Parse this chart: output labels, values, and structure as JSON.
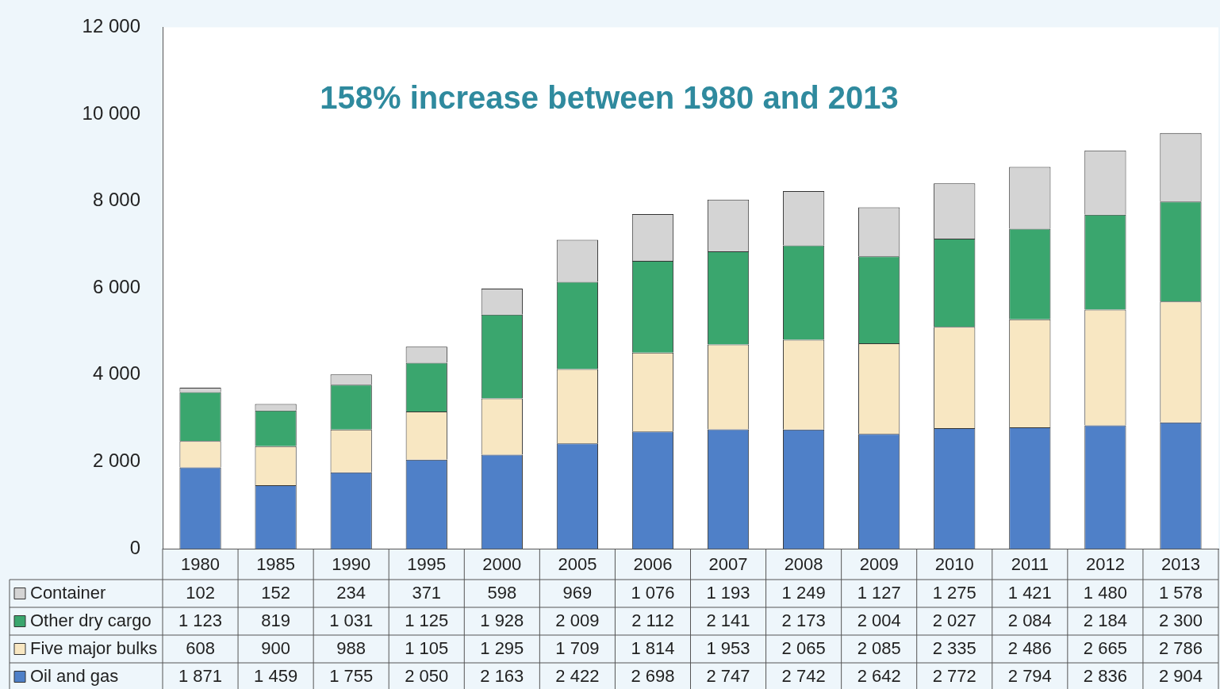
{
  "chart_data": {
    "type": "bar",
    "stacked": true,
    "categories": [
      "1980",
      "1985",
      "1990",
      "1995",
      "2000",
      "2005",
      "2006",
      "2007",
      "2008",
      "2009",
      "2010",
      "2011",
      "2012",
      "2013"
    ],
    "series": [
      {
        "name": "Oil and gas",
        "color": "#4f80c8",
        "values": [
          1871,
          1459,
          1755,
          2050,
          2163,
          2422,
          2698,
          2747,
          2742,
          2642,
          2772,
          2794,
          2836,
          2904
        ],
        "value_labels": [
          "1 871",
          "1 459",
          "1 755",
          "2 050",
          "2 163",
          "2 422",
          "2 698",
          "2 747",
          "2 742",
          "2 642",
          "2 772",
          "2 794",
          "2 836",
          "2 904"
        ]
      },
      {
        "name": "Five major bulks",
        "color": "#f8e7c2",
        "values": [
          608,
          900,
          988,
          1105,
          1295,
          1709,
          1814,
          1953,
          2065,
          2085,
          2335,
          2486,
          2665,
          2786
        ],
        "value_labels": [
          "608",
          "900",
          "988",
          "1 105",
          "1 295",
          "1 709",
          "1 814",
          "1 953",
          "2 065",
          "2 085",
          "2 335",
          "2 486",
          "2 665",
          "2 786"
        ]
      },
      {
        "name": "Other dry cargo",
        "color": "#3aa66e",
        "values": [
          1123,
          819,
          1031,
          1125,
          1928,
          2009,
          2112,
          2141,
          2173,
          2004,
          2027,
          2084,
          2184,
          2300
        ],
        "value_labels": [
          "1 123",
          "819",
          "1 031",
          "1 125",
          "1 928",
          "2 009",
          "2 112",
          "2 141",
          "2 173",
          "2 004",
          "2 027",
          "2 084",
          "2 184",
          "2 300"
        ]
      },
      {
        "name": "Container",
        "color": "#d4d4d4",
        "values": [
          102,
          152,
          234,
          371,
          598,
          969,
          1076,
          1193,
          1249,
          1127,
          1275,
          1421,
          1480,
          1578
        ],
        "value_labels": [
          "102",
          "152",
          "234",
          "371",
          "598",
          "969",
          "1 076",
          "1 193",
          "1 249",
          "1 127",
          "1 275",
          "1 421",
          "1 480",
          "1 578"
        ]
      }
    ],
    "ylim": [
      0,
      12000
    ],
    "yticks": [
      0,
      {
        "value": 2000,
        "label": "2 000"
      },
      {
        "value": 4000,
        "label": "4 000"
      },
      {
        "value": 6000,
        "label": "6 000"
      },
      {
        "value": 8000,
        "label": "8 000"
      },
      {
        "value": 10000,
        "label": "10 000"
      },
      {
        "value": 12000,
        "label": "12 000"
      }
    ],
    "grid": false,
    "legend": "bottom left",
    "annotations": [
      "158% increase between 1980 and 2013"
    ]
  }
}
